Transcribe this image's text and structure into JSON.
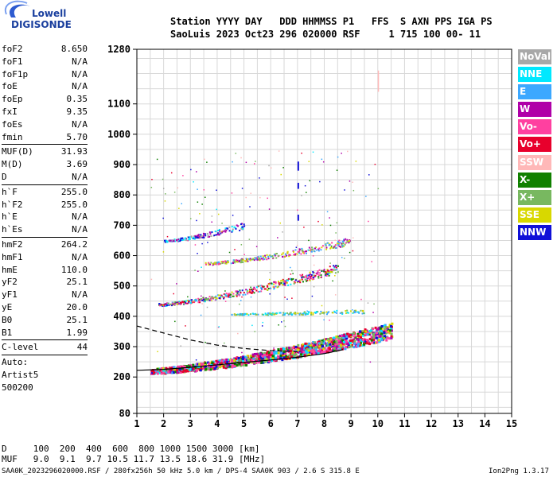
{
  "logo": {
    "line1": "Lowell",
    "line2": "DIGISONDE"
  },
  "header": {
    "line1": "Station YYYY DAY   DDD HHMMSS P1   FFS  S AXN PPS IGA PS",
    "line2": "SaoLuis 2023 Oct23 296 020000 RSF     1 715 100 00- 11"
  },
  "params": [
    [
      {
        "label": "foF2",
        "value": "8.650"
      },
      {
        "label": "foF1",
        "value": "N/A"
      },
      {
        "label": "foF1p",
        "value": "N/A"
      },
      {
        "label": "foE",
        "value": "N/A"
      },
      {
        "label": "foEp",
        "value": "0.35"
      },
      {
        "label": "fxI",
        "value": "9.35"
      },
      {
        "label": "foEs",
        "value": "N/A"
      },
      {
        "label": "fmin",
        "value": "5.70"
      }
    ],
    [
      {
        "label": "MUF(D)",
        "value": "31.93"
      },
      {
        "label": "M(D)",
        "value": "3.69"
      },
      {
        "label": "D",
        "value": "N/A"
      }
    ],
    [
      {
        "label": "h`F",
        "value": "255.0"
      },
      {
        "label": "h`F2",
        "value": "255.0"
      },
      {
        "label": "h`E",
        "value": "N/A"
      },
      {
        "label": "h`Es",
        "value": "N/A"
      }
    ],
    [
      {
        "label": "hmF2",
        "value": "264.2"
      },
      {
        "label": "hmF1",
        "value": "N/A"
      },
      {
        "label": "hmE",
        "value": "110.0"
      },
      {
        "label": "yF2",
        "value": "25.1"
      },
      {
        "label": "yF1",
        "value": "N/A"
      },
      {
        "label": "yE",
        "value": "20.0"
      },
      {
        "label": "B0",
        "value": "25.1"
      },
      {
        "label": "B1",
        "value": "1.99"
      }
    ],
    [
      {
        "label": "C-level",
        "value": "44"
      }
    ],
    [
      {
        "label": "Auto:",
        "value": ""
      },
      {
        "label": "Artist5",
        "value": ""
      },
      {
        "label": "500200",
        "value": ""
      }
    ]
  ],
  "legend": [
    {
      "name": "NoVal",
      "color": "#a8a8a8"
    },
    {
      "name": "NNE",
      "color": "#00e8ff"
    },
    {
      "name": "E",
      "color": "#3ca8ff"
    },
    {
      "name": "W",
      "color": "#b000a8"
    },
    {
      "name": "Vo-",
      "color": "#ff40a0"
    },
    {
      "name": "Vo+",
      "color": "#e8002c"
    },
    {
      "name": "SSW",
      "color": "#ffb8b8"
    },
    {
      "name": "X-",
      "color": "#108000"
    },
    {
      "name": "X+",
      "color": "#78b860"
    },
    {
      "name": "SSE",
      "color": "#d8d800"
    },
    {
      "name": "NNW",
      "color": "#1010d8"
    }
  ],
  "footer": {
    "line1": "D     100  200  400  600  800 1000 1500 3000 [km]",
    "line2": "MUF   9.0  9.1  9.7 10.5 11.7 13.5 18.6 31.9 [MHz]",
    "line3": "SAA0K_2023296020000.RSF / 280fx256h 50 kHz 5.0 km / DPS-4 SAA0K 903 / 2.6 S 315.8 E",
    "version": "Ion2Png 1.3.17"
  },
  "chart_data": {
    "type": "scatter",
    "title": "",
    "xlabel": "",
    "ylabel": "",
    "xlim": [
      1,
      15
    ],
    "ylim": [
      80,
      1280
    ],
    "x_ticks": [
      1,
      2,
      3,
      4,
      5,
      6,
      7,
      8,
      9,
      10,
      11,
      12,
      13,
      14,
      15
    ],
    "y_ticks": [
      80,
      200,
      300,
      400,
      500,
      600,
      700,
      800,
      900,
      1000,
      1100,
      1280
    ],
    "grid": true,
    "traces": [
      {
        "name": "O-trace F2 first hop",
        "x_range": [
          1.5,
          10.5
        ],
        "h_start": 222,
        "h_end": 355
      },
      {
        "name": "Second hop",
        "x_range": [
          1.8,
          8.5
        ],
        "h_start": 440,
        "h_end": 560
      },
      {
        "name": "Cyan band",
        "x_range": [
          4.5,
          9.5
        ],
        "h_start": 408,
        "h_end": 418
      },
      {
        "name": "Third hop",
        "x_range": [
          3.5,
          9.0
        ],
        "h_start": 575,
        "h_end": 650
      },
      {
        "name": "Fourth hop",
        "x_range": [
          2.0,
          5.0
        ],
        "h_start": 650,
        "h_end": 700
      }
    ],
    "profile_curves": [
      {
        "name": "Dashed profile",
        "x": [
          1.0,
          2.0,
          3.0,
          4.0,
          5.0,
          6.0,
          7.0
        ],
        "y": [
          368,
          345,
          322,
          305,
          294,
          287,
          283
        ]
      },
      {
        "name": "Solid profile",
        "x": [
          1.0,
          2.0,
          3.0,
          4.0,
          5.0,
          6.0,
          7.0,
          8.0,
          8.7
        ],
        "y": [
          222,
          225,
          232,
          240,
          248,
          256,
          265,
          277,
          290
        ]
      }
    ]
  }
}
